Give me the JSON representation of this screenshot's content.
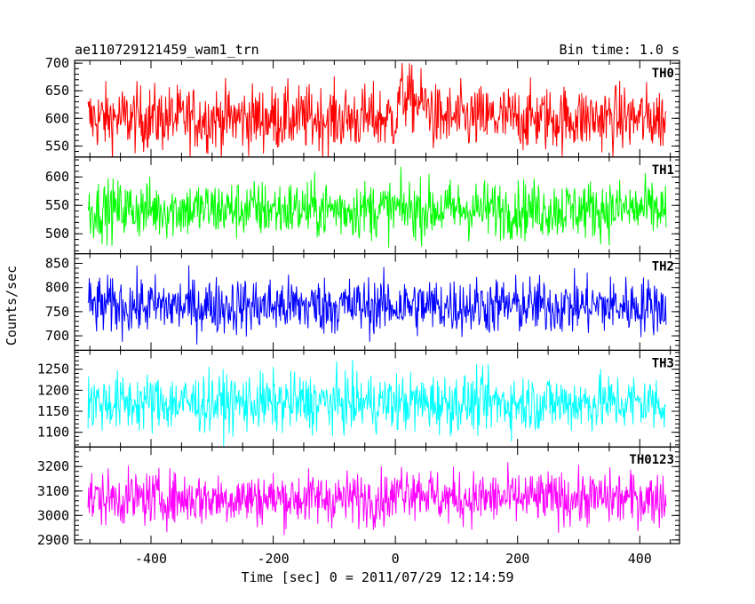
{
  "header": {
    "title": "ae110729121459_wam1_trn",
    "bin_time": "Bin time: 1.0 s"
  },
  "ylabel": "Counts/sec",
  "xlabel": "Time [sec] 0 = 2011/07/29 12:14:59",
  "x_ticks": [
    -400,
    -200,
    0,
    200,
    400
  ],
  "chart_data": {
    "type": "line",
    "title": "ae110729121459_wam1_trn",
    "xlabel": "Time [sec] 0 = 2011/07/29 12:14:59",
    "ylabel": "Counts/sec",
    "xlim": [
      -525,
      465
    ],
    "x_range": [
      -503,
      443
    ],
    "bin_time_s": 1.0,
    "panels": [
      {
        "name": "TH0",
        "color": "#ff0000",
        "ylim": [
          530,
          705
        ],
        "yticks": [
          550,
          600,
          650,
          700
        ],
        "mean": 600,
        "spread": 30,
        "features": [
          {
            "x_start": 5,
            "x_end": 60,
            "offset": 45
          }
        ]
      },
      {
        "name": "TH1",
        "color": "#00ff00",
        "ylim": [
          465,
          635
        ],
        "yticks": [
          500,
          550,
          600
        ],
        "mean": 543,
        "spread": 26,
        "features": []
      },
      {
        "name": "TH2",
        "color": "#0000ff",
        "ylim": [
          670,
          870
        ],
        "yticks": [
          700,
          750,
          800,
          850
        ],
        "mean": 762,
        "spread": 30,
        "features": []
      },
      {
        "name": "TH3",
        "color": "#00ffff",
        "ylim": [
          1065,
          1295
        ],
        "yticks": [
          1100,
          1150,
          1200,
          1250
        ],
        "mean": 1170,
        "spread": 35,
        "features": []
      },
      {
        "name": "TH0123",
        "color": "#ff00ff",
        "ylim": [
          2885,
          3280
        ],
        "yticks": [
          2900,
          3000,
          3100,
          3200
        ],
        "mean": 3070,
        "spread": 55,
        "features": [
          {
            "x_start": 5,
            "x_end": 60,
            "offset": 50
          }
        ]
      }
    ]
  }
}
